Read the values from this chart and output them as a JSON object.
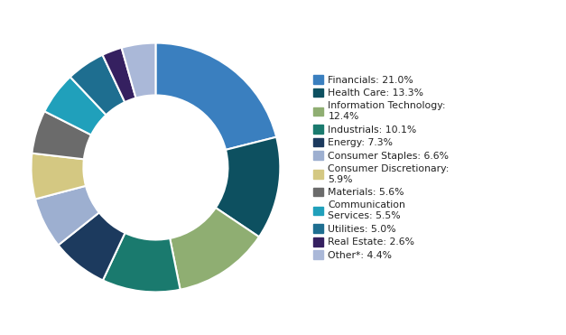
{
  "labels": [
    "Financials: 21.0%",
    "Health Care: 13.3%",
    "Information Technology:\n12.4%",
    "Industrials: 10.1%",
    "Energy: 7.3%",
    "Consumer Staples: 6.6%",
    "Consumer Discretionary:\n5.9%",
    "Materials: 5.6%",
    "Communication\nServices: 5.5%",
    "Utilities: 5.0%",
    "Real Estate: 2.6%",
    "Other*: 4.4%"
  ],
  "values": [
    21.0,
    13.3,
    12.4,
    10.1,
    7.3,
    6.6,
    5.9,
    5.6,
    5.5,
    5.0,
    2.6,
    4.4
  ],
  "colors": [
    "#3a7fbf",
    "#0d5060",
    "#8fae72",
    "#1a7a6e",
    "#1c3a5e",
    "#9dafd0",
    "#d4c882",
    "#6b6b6b",
    "#20a0bb",
    "#1e6e90",
    "#352060",
    "#aab8d8"
  ],
  "background_color": "#ffffff",
  "wedge_edge_color": "#ffffff",
  "wedge_linewidth": 1.5
}
